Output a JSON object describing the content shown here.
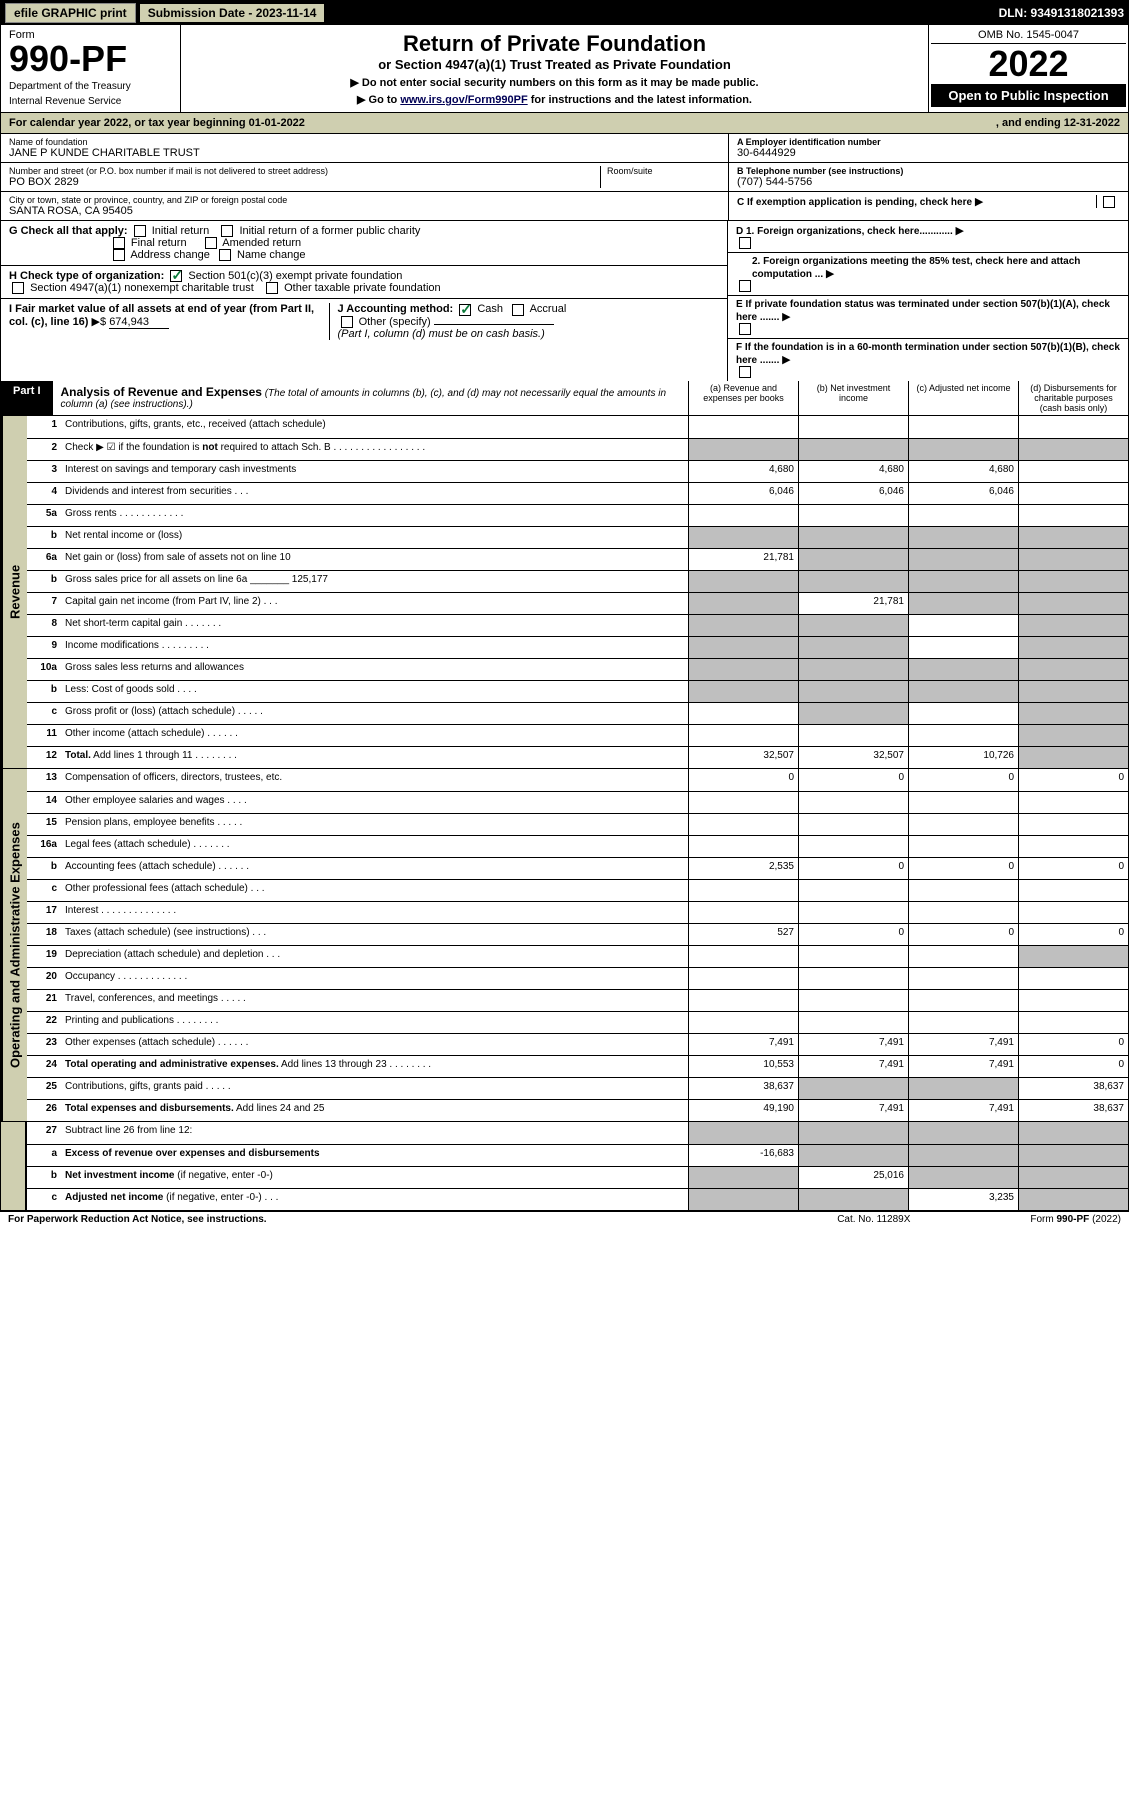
{
  "topbar": {
    "efile": "efile GRAPHIC print",
    "subdate_label": "Submission Date - 2023-11-14",
    "dln": "DLN: 93491318021393"
  },
  "header": {
    "form_label": "Form",
    "form_no": "990-PF",
    "dept": "Department of the Treasury",
    "irs": "Internal Revenue Service",
    "title": "Return of Private Foundation",
    "subtitle": "or Section 4947(a)(1) Trust Treated as Private Foundation",
    "note1": "▶ Do not enter social security numbers on this form as it may be made public.",
    "note2_pre": "▶ Go to ",
    "note2_link": "www.irs.gov/Form990PF",
    "note2_post": " for instructions and the latest information.",
    "omb": "OMB No. 1545-0047",
    "year": "2022",
    "open": "Open to Public Inspection"
  },
  "cal": {
    "text_a": "For calendar year 2022, or tax year beginning 01-01-2022",
    "text_b": ", and ending 12-31-2022"
  },
  "info": {
    "name_lbl": "Name of foundation",
    "name": "JANE P KUNDE CHARITABLE TRUST",
    "addr_lbl": "Number and street (or P.O. box number if mail is not delivered to street address)",
    "addr": "PO BOX 2829",
    "room_lbl": "Room/suite",
    "city_lbl": "City or town, state or province, country, and ZIP or foreign postal code",
    "city": "SANTA ROSA, CA  95405",
    "ein_lbl": "A Employer identification number",
    "ein": "30-6444929",
    "tel_lbl": "B Telephone number (see instructions)",
    "tel": "(707) 544-5756",
    "c": "C If exemption application is pending, check here",
    "d1": "D 1. Foreign organizations, check here............",
    "d2": "2. Foreign organizations meeting the 85% test, check here and attach computation ...",
    "e": "E  If private foundation status was terminated under section 507(b)(1)(A), check here .......",
    "f": "F  If the foundation is in a 60-month termination under section 507(b)(1)(B), check here .......",
    "g_lbl": "G Check all that apply:",
    "g_opts": [
      "Initial return",
      "Initial return of a former public charity",
      "Final return",
      "Amended return",
      "Address change",
      "Name change"
    ],
    "h_lbl": "H Check type of organization:",
    "h_opts": [
      "Section 501(c)(3) exempt private foundation",
      "Section 4947(a)(1) nonexempt charitable trust",
      "Other taxable private foundation"
    ],
    "i_lbl": "I Fair market value of all assets at end of year (from Part II, col. (c), line 16)",
    "i_val": "674,943",
    "j_lbl": "J Accounting method:",
    "j_cash": "Cash",
    "j_accrual": "Accrual",
    "j_other": "Other (specify)",
    "j_note": "(Part I, column (d) must be on cash basis.)"
  },
  "part1": {
    "tab": "Part I",
    "title": "Analysis of Revenue and Expenses",
    "note": "(The total of amounts in columns (b), (c), and (d) may not necessarily equal the amounts in column (a) (see instructions).)",
    "cols": [
      "(a)  Revenue and expenses per books",
      "(b)  Net investment income",
      "(c)  Adjusted net income",
      "(d)  Disbursements for charitable purposes (cash basis only)"
    ]
  },
  "sections": {
    "revenue": "Revenue",
    "expenses": "Operating and Administrative Expenses"
  },
  "rows": [
    {
      "n": "1",
      "d": "Contributions, gifts, grants, etc., received (attach schedule)",
      "c": [
        "",
        "",
        "",
        ""
      ],
      "g": [
        0,
        0,
        0,
        0
      ]
    },
    {
      "n": "2",
      "d": "Check ▶ ☑ if the foundation is <b>not</b> required to attach Sch. B  .  .  .  .  .  .  .  .  .  .  .  .  .  .  .  .  .",
      "c": [
        "",
        "",
        "",
        ""
      ],
      "g": [
        1,
        1,
        1,
        1
      ]
    },
    {
      "n": "3",
      "d": "Interest on savings and temporary cash investments",
      "c": [
        "4,680",
        "4,680",
        "4,680",
        ""
      ],
      "g": [
        0,
        0,
        0,
        0
      ]
    },
    {
      "n": "4",
      "d": "Dividends and interest from securities  .  .  .",
      "c": [
        "6,046",
        "6,046",
        "6,046",
        ""
      ],
      "g": [
        0,
        0,
        0,
        0
      ]
    },
    {
      "n": "5a",
      "d": "Gross rents  .  .  .  .  .  .  .  .  .  .  .  .",
      "c": [
        "",
        "",
        "",
        ""
      ],
      "g": [
        0,
        0,
        0,
        0
      ]
    },
    {
      "n": "b",
      "d": "Net rental income or (loss)  ",
      "c": [
        "",
        "",
        "",
        ""
      ],
      "g": [
        1,
        1,
        1,
        1
      ]
    },
    {
      "n": "6a",
      "d": "Net gain or (loss) from sale of assets not on line 10",
      "c": [
        "21,781",
        "",
        "",
        ""
      ],
      "g": [
        0,
        1,
        1,
        1
      ]
    },
    {
      "n": "b",
      "d": "Gross sales price for all assets on line 6a _______ 125,177",
      "c": [
        "",
        "",
        "",
        ""
      ],
      "g": [
        1,
        1,
        1,
        1
      ]
    },
    {
      "n": "7",
      "d": "Capital gain net income (from Part IV, line 2)  .  .  .",
      "c": [
        "",
        "21,781",
        "",
        ""
      ],
      "g": [
        1,
        0,
        1,
        1
      ]
    },
    {
      "n": "8",
      "d": "Net short-term capital gain  .  .  .  .  .  .  .",
      "c": [
        "",
        "",
        "",
        ""
      ],
      "g": [
        1,
        1,
        0,
        1
      ]
    },
    {
      "n": "9",
      "d": "Income modifications  .  .  .  .  .  .  .  .  .",
      "c": [
        "",
        "",
        "",
        ""
      ],
      "g": [
        1,
        1,
        0,
        1
      ]
    },
    {
      "n": "10a",
      "d": "Gross sales less returns and allowances",
      "c": [
        "",
        "",
        "",
        ""
      ],
      "g": [
        1,
        1,
        1,
        1
      ]
    },
    {
      "n": "b",
      "d": "Less: Cost of goods sold  .  .  .  .",
      "c": [
        "",
        "",
        "",
        ""
      ],
      "g": [
        1,
        1,
        1,
        1
      ]
    },
    {
      "n": "c",
      "d": "Gross profit or (loss) (attach schedule)  .  .  .  .  .",
      "c": [
        "",
        "",
        "",
        ""
      ],
      "g": [
        0,
        1,
        0,
        1
      ]
    },
    {
      "n": "11",
      "d": "Other income (attach schedule)  .  .  .  .  .  .",
      "c": [
        "",
        "",
        "",
        ""
      ],
      "g": [
        0,
        0,
        0,
        1
      ]
    },
    {
      "n": "12",
      "d": "<b>Total.</b> Add lines 1 through 11  .  .  .  .  .  .  .  .",
      "c": [
        "32,507",
        "32,507",
        "10,726",
        ""
      ],
      "g": [
        0,
        0,
        0,
        1
      ]
    }
  ],
  "exp_rows": [
    {
      "n": "13",
      "d": "Compensation of officers, directors, trustees, etc.",
      "c": [
        "0",
        "0",
        "0",
        "0"
      ],
      "g": [
        0,
        0,
        0,
        0
      ]
    },
    {
      "n": "14",
      "d": "Other employee salaries and wages  .  .  .  .",
      "c": [
        "",
        "",
        "",
        ""
      ],
      "g": [
        0,
        0,
        0,
        0
      ]
    },
    {
      "n": "15",
      "d": "Pension plans, employee benefits  .  .  .  .  .",
      "c": [
        "",
        "",
        "",
        ""
      ],
      "g": [
        0,
        0,
        0,
        0
      ]
    },
    {
      "n": "16a",
      "d": "Legal fees (attach schedule)  .  .  .  .  .  .  .",
      "c": [
        "",
        "",
        "",
        ""
      ],
      "g": [
        0,
        0,
        0,
        0
      ]
    },
    {
      "n": "b",
      "d": "Accounting fees (attach schedule)  .  .  .  .  .  .",
      "c": [
        "2,535",
        "0",
        "0",
        "0"
      ],
      "g": [
        0,
        0,
        0,
        0
      ]
    },
    {
      "n": "c",
      "d": "Other professional fees (attach schedule)  .  .  .",
      "c": [
        "",
        "",
        "",
        ""
      ],
      "g": [
        0,
        0,
        0,
        0
      ]
    },
    {
      "n": "17",
      "d": "Interest  .  .  .  .  .  .  .  .  .  .  .  .  .  .",
      "c": [
        "",
        "",
        "",
        ""
      ],
      "g": [
        0,
        0,
        0,
        0
      ]
    },
    {
      "n": "18",
      "d": "Taxes (attach schedule) (see instructions)  .  .  .",
      "c": [
        "527",
        "0",
        "0",
        "0"
      ],
      "g": [
        0,
        0,
        0,
        0
      ]
    },
    {
      "n": "19",
      "d": "Depreciation (attach schedule) and depletion  .  .  .",
      "c": [
        "",
        "",
        "",
        ""
      ],
      "g": [
        0,
        0,
        0,
        1
      ]
    },
    {
      "n": "20",
      "d": "Occupancy  .  .  .  .  .  .  .  .  .  .  .  .  .",
      "c": [
        "",
        "",
        "",
        ""
      ],
      "g": [
        0,
        0,
        0,
        0
      ]
    },
    {
      "n": "21",
      "d": "Travel, conferences, and meetings  .  .  .  .  .",
      "c": [
        "",
        "",
        "",
        ""
      ],
      "g": [
        0,
        0,
        0,
        0
      ]
    },
    {
      "n": "22",
      "d": "Printing and publications  .  .  .  .  .  .  .  .",
      "c": [
        "",
        "",
        "",
        ""
      ],
      "g": [
        0,
        0,
        0,
        0
      ]
    },
    {
      "n": "23",
      "d": "Other expenses (attach schedule)  .  .  .  .  .  .",
      "c": [
        "7,491",
        "7,491",
        "7,491",
        "0"
      ],
      "g": [
        0,
        0,
        0,
        0
      ]
    },
    {
      "n": "24",
      "d": "<b>Total operating and administrative expenses.</b> Add lines 13 through 23  .  .  .  .  .  .  .  .",
      "c": [
        "10,553",
        "7,491",
        "7,491",
        "0"
      ],
      "g": [
        0,
        0,
        0,
        0
      ]
    },
    {
      "n": "25",
      "d": "Contributions, gifts, grants paid  .  .  .  .  .",
      "c": [
        "38,637",
        "",
        "",
        "38,637"
      ],
      "g": [
        0,
        1,
        1,
        0
      ]
    },
    {
      "n": "26",
      "d": "<b>Total expenses and disbursements.</b> Add lines 24 and 25",
      "c": [
        "49,190",
        "7,491",
        "7,491",
        "38,637"
      ],
      "g": [
        0,
        0,
        0,
        0
      ]
    }
  ],
  "bottom_rows": [
    {
      "n": "27",
      "d": "Subtract line 26 from line 12:",
      "c": [
        "",
        "",
        "",
        ""
      ],
      "g": [
        1,
        1,
        1,
        1
      ]
    },
    {
      "n": "a",
      "d": "<b>Excess of revenue over expenses and disbursements</b>",
      "c": [
        "-16,683",
        "",
        "",
        ""
      ],
      "g": [
        0,
        1,
        1,
        1
      ]
    },
    {
      "n": "b",
      "d": "<b>Net investment income</b> (if negative, enter -0-)",
      "c": [
        "",
        "25,016",
        "",
        ""
      ],
      "g": [
        1,
        0,
        1,
        1
      ]
    },
    {
      "n": "c",
      "d": "<b>Adjusted net income</b> (if negative, enter -0-)  .  .  .",
      "c": [
        "",
        "",
        "3,235",
        ""
      ],
      "g": [
        1,
        1,
        0,
        1
      ]
    }
  ],
  "footer": {
    "left": "For Paperwork Reduction Act Notice, see instructions.",
    "mid": "Cat. No. 11289X",
    "right": "Form 990-PF (2022)"
  }
}
